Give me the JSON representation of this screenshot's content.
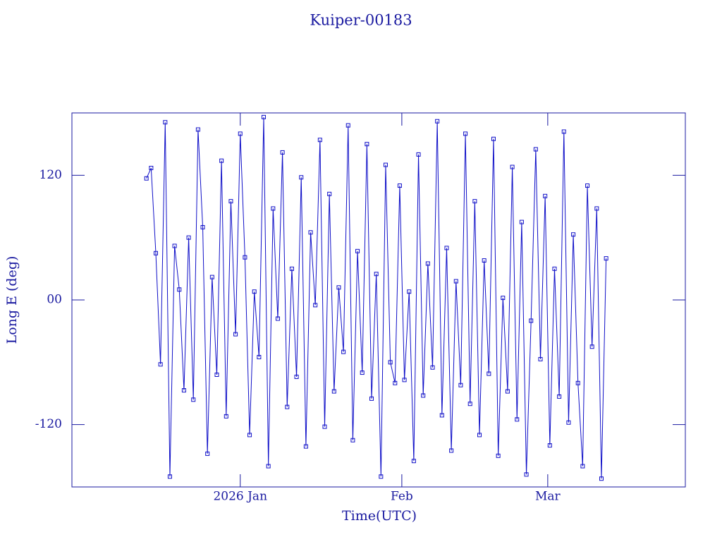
{
  "chart_data": {
    "type": "line",
    "title": "Kuiper-00183",
    "xlabel": "Time(UTC)",
    "ylabel": "Long E (deg)",
    "x": [
      -18.0,
      -17.1,
      -16.2,
      -15.3,
      -14.4,
      -13.5,
      -12.6,
      -11.7,
      -10.8,
      -9.9,
      -9.0,
      -8.1,
      -7.2,
      -6.3,
      -5.4,
      -4.5,
      -3.6,
      -2.7,
      -1.8,
      -0.9,
      0.0,
      0.9,
      1.8,
      2.7,
      3.6,
      4.5,
      5.4,
      6.3,
      7.2,
      8.1,
      9.0,
      9.9,
      10.8,
      11.7,
      12.6,
      13.5,
      14.4,
      15.3,
      16.2,
      17.1,
      18.0,
      18.9,
      19.8,
      20.7,
      21.6,
      22.5,
      23.4,
      24.3,
      25.2,
      26.1,
      27.0,
      27.9,
      28.8,
      29.7,
      30.6,
      31.5,
      32.4,
      33.3,
      34.2,
      35.1,
      36.0,
      36.9,
      37.8,
      38.7,
      39.6,
      40.5,
      41.4,
      42.3,
      43.2,
      44.1,
      45.0,
      45.9,
      46.8,
      47.7,
      48.6,
      49.5,
      50.4,
      51.3,
      52.2,
      53.1,
      54.0,
      54.9,
      55.8,
      56.7,
      57.6,
      58.5,
      59.4,
      60.3,
      61.2,
      62.1,
      63.0,
      63.9,
      64.8,
      65.7,
      66.6,
      67.5,
      68.4,
      69.3,
      70.2
    ],
    "series": [
      {
        "name": "Long E",
        "color": "#1010c8",
        "values": [
          117,
          127,
          45,
          -62,
          171,
          -170,
          52,
          10,
          -87,
          60,
          -96,
          164,
          70,
          -148,
          22,
          -72,
          134,
          -112,
          95,
          -33,
          160,
          41,
          -130,
          8,
          -55,
          176,
          -160,
          88,
          -18,
          142,
          -103,
          30,
          -74,
          118,
          -141,
          65,
          -5,
          154,
          -122,
          102,
          -88,
          12,
          -50,
          168,
          -135,
          47,
          -70,
          150,
          -95,
          25,
          -170,
          130,
          -60,
          -80,
          110,
          -77,
          8,
          -155,
          140,
          -92,
          35,
          -65,
          172,
          -111,
          50,
          -145,
          18,
          -82,
          160,
          -100,
          95,
          -130,
          38,
          -71,
          155,
          -150,
          2,
          -88,
          128,
          -115,
          75,
          -168,
          -20,
          145,
          -57,
          100,
          -140,
          30,
          -93,
          162,
          -118,
          63,
          -80,
          -160,
          110,
          -45,
          88,
          -172,
          40
        ]
      }
    ],
    "xlim": [
      -32.3,
      85.4
    ],
    "xticks": [
      {
        "value": 0,
        "label": "2026 Jan"
      },
      {
        "value": 31,
        "label": "Feb"
      },
      {
        "value": 59,
        "label": "Mar"
      }
    ],
    "ylim": [
      -180,
      180
    ],
    "yticks": [
      -120,
      {
        "value": 0,
        "label": "00"
      },
      120
    ],
    "axis_color": "#1a1aa0"
  }
}
